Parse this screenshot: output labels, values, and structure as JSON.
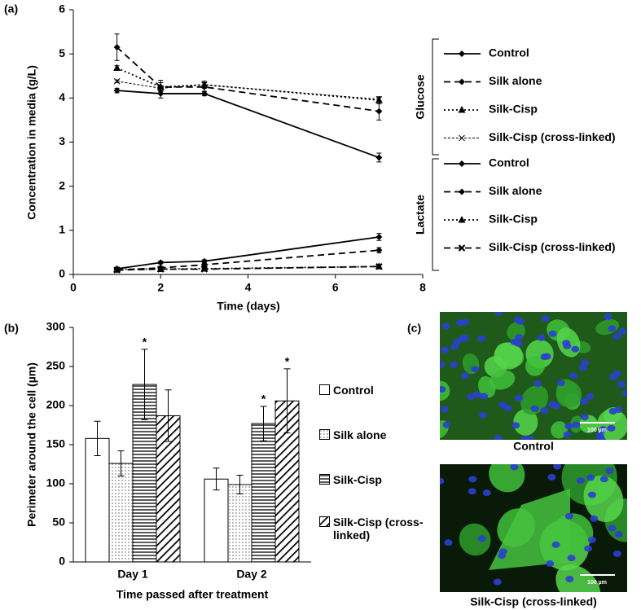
{
  "chart_data": [
    {
      "type": "line",
      "panel_label": "(a)",
      "xlabel": "Time (days)",
      "ylabel": "Concentration in media (g/L)",
      "x": [
        1,
        2,
        3,
        7
      ],
      "xlim": [
        0,
        8
      ],
      "xticks": [
        0,
        2,
        4,
        6,
        8
      ],
      "ylim": [
        0,
        6
      ],
      "yticks": [
        0,
        1,
        2,
        3,
        4,
        5,
        6
      ],
      "legend_groups": [
        "Glucose",
        "Lactate"
      ],
      "series": [
        {
          "name": "Control",
          "color": "#000000",
          "dash": "solid",
          "marker": "diamond",
          "values": [
            4.17,
            4.1,
            4.1,
            2.65
          ],
          "errors": [
            0.05,
            0.1,
            0.05,
            0.1
          ]
        },
        {
          "name": "Silk alone",
          "color": "#000000",
          "dash": "dashed",
          "marker": "diamond",
          "values": [
            5.15,
            4.25,
            4.25,
            3.7
          ],
          "errors": [
            0.3,
            0.15,
            0.1,
            0.2
          ]
        },
        {
          "name": "Silk-Cisp",
          "color": "#000000",
          "dash": "dotted",
          "marker": "triangle",
          "values": [
            4.68,
            4.25,
            4.3,
            3.95
          ],
          "errors": [
            0.05,
            0.1,
            0.08,
            0.08
          ]
        },
        {
          "name": "Silk-Cisp (cross-linked)",
          "color": "#000000",
          "dash": "fine",
          "marker": "x",
          "values": [
            4.38,
            4.22,
            4.3,
            3.97
          ],
          "errors": [
            0.03,
            0.05,
            0.05,
            0.05
          ]
        },
        {
          "name": "Control",
          "color": "#000000",
          "dash": "solid",
          "marker": "diamond",
          "values": [
            0.13,
            0.27,
            0.3,
            0.85
          ],
          "errors": [
            0.03,
            0.03,
            0.03,
            0.08
          ]
        },
        {
          "name": "Silk alone",
          "color": "#000000",
          "dash": "dashed",
          "marker": "diamond",
          "values": [
            0.1,
            0.15,
            0.22,
            0.55
          ],
          "errors": [
            0.02,
            0.03,
            0.03,
            0.06
          ]
        },
        {
          "name": "Silk-Cisp",
          "color": "#000000",
          "dash": "dotted",
          "marker": "triangle",
          "values": [
            0.12,
            0.12,
            0.13,
            0.18
          ],
          "errors": [
            0.02,
            0.02,
            0.02,
            0.03
          ]
        },
        {
          "name": "Silk-Cisp (cross-linked)",
          "color": "#000000",
          "dash": "dashed",
          "marker": "x",
          "values": [
            0.1,
            0.12,
            0.12,
            0.18
          ],
          "errors": [
            0.02,
            0.02,
            0.02,
            0.03
          ]
        }
      ]
    },
    {
      "type": "bar",
      "panel_label": "(b)",
      "xlabel": "Time passed after treatment",
      "ylabel": "Perimeter around the cell (µm)",
      "categories": [
        "Day 1",
        "Day 2"
      ],
      "ylim": [
        0,
        300
      ],
      "yticks": [
        0,
        50,
        100,
        150,
        200,
        250,
        300
      ],
      "series": [
        {
          "name": "Control",
          "pattern": "none",
          "values": [
            158,
            106
          ],
          "errors": [
            22,
            14
          ]
        },
        {
          "name": "Silk alone",
          "pattern": "dots",
          "values": [
            126,
            99
          ],
          "errors": [
            16,
            12
          ]
        },
        {
          "name": "Silk-Cisp",
          "pattern": "hlines",
          "values": [
            227,
            177
          ],
          "errors": [
            45,
            22
          ],
          "significance": [
            "*",
            "*"
          ]
        },
        {
          "name": "Silk-Cisp (cross-linked)",
          "pattern": "diag",
          "values": [
            187,
            206
          ],
          "errors": [
            33,
            41
          ],
          "significance": [
            null,
            "*"
          ]
        }
      ]
    }
  ],
  "panel_c": {
    "panel_label": "(c)",
    "images": [
      {
        "caption": "Control",
        "scale_bar": "100 µm"
      },
      {
        "caption": "Silk-Cisp (cross-linked)",
        "scale_bar": "100 µm"
      }
    ]
  }
}
